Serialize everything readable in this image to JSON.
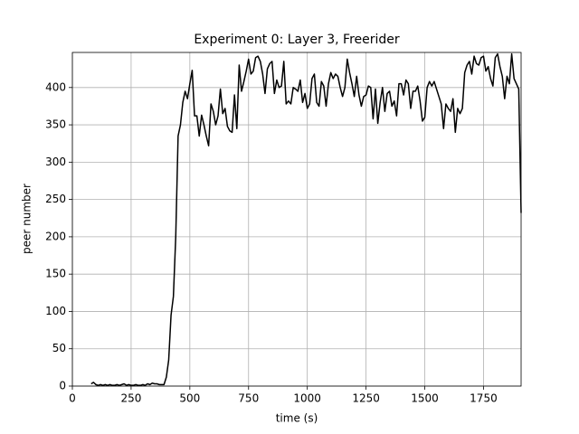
{
  "chart_data": {
    "type": "line",
    "title": "Experiment 0: Layer 3, Freerider",
    "x_label": "time (s)",
    "y_label": "peer number",
    "x": [
      80,
      90,
      100,
      110,
      120,
      130,
      140,
      150,
      160,
      170,
      180,
      190,
      200,
      210,
      220,
      230,
      240,
      250,
      260,
      270,
      280,
      290,
      300,
      310,
      320,
      330,
      340,
      350,
      360,
      370,
      380,
      390,
      400,
      410,
      420,
      430,
      440,
      450,
      460,
      470,
      480,
      490,
      500,
      510,
      520,
      530,
      540,
      550,
      560,
      570,
      580,
      590,
      600,
      610,
      620,
      630,
      640,
      650,
      660,
      670,
      680,
      690,
      700,
      710,
      720,
      730,
      740,
      750,
      760,
      770,
      780,
      790,
      800,
      810,
      820,
      830,
      840,
      850,
      860,
      870,
      880,
      890,
      900,
      910,
      920,
      930,
      940,
      950,
      960,
      970,
      980,
      990,
      1000,
      1010,
      1020,
      1030,
      1040,
      1050,
      1060,
      1070,
      1080,
      1090,
      1100,
      1110,
      1120,
      1130,
      1140,
      1150,
      1160,
      1170,
      1180,
      1190,
      1200,
      1210,
      1220,
      1230,
      1240,
      1250,
      1260,
      1270,
      1280,
      1290,
      1300,
      1310,
      1320,
      1330,
      1340,
      1350,
      1360,
      1370,
      1380,
      1390,
      1400,
      1410,
      1420,
      1430,
      1440,
      1450,
      1460,
      1470,
      1480,
      1490,
      1500,
      1510,
      1520,
      1530,
      1540,
      1550,
      1560,
      1570,
      1580,
      1590,
      1600,
      1610,
      1620,
      1630,
      1640,
      1650,
      1660,
      1670,
      1680,
      1690,
      1700,
      1710,
      1720,
      1730,
      1740,
      1750,
      1760,
      1770,
      1780,
      1790,
      1800,
      1810,
      1820,
      1830,
      1840,
      1850,
      1860,
      1870,
      1880,
      1890,
      1900,
      1910
    ],
    "series": [
      {
        "color": "#000000",
        "values": [
          3,
          5,
          2,
          1,
          2,
          1,
          2,
          1,
          2,
          1,
          1,
          2,
          1,
          2,
          3,
          1,
          2,
          1,
          1,
          2,
          1,
          1,
          2,
          1,
          3,
          2,
          4,
          3,
          3,
          2,
          2,
          2,
          12,
          35,
          95,
          120,
          200,
          335,
          350,
          380,
          395,
          385,
          405,
          423,
          362,
          362,
          335,
          363,
          350,
          335,
          322,
          378,
          368,
          350,
          362,
          398,
          365,
          372,
          348,
          342,
          340,
          390,
          345,
          430,
          395,
          408,
          422,
          438,
          418,
          422,
          440,
          442,
          435,
          418,
          392,
          425,
          432,
          435,
          392,
          410,
          400,
          402,
          435,
          378,
          382,
          378,
          400,
          398,
          395,
          410,
          380,
          392,
          372,
          378,
          412,
          418,
          380,
          375,
          408,
          402,
          375,
          405,
          420,
          412,
          418,
          415,
          400,
          388,
          400,
          438,
          420,
          405,
          388,
          415,
          390,
          375,
          388,
          390,
          402,
          400,
          358,
          398,
          352,
          380,
          400,
          368,
          392,
          395,
          375,
          382,
          362,
          405,
          405,
          390,
          410,
          405,
          372,
          395,
          395,
          402,
          382,
          355,
          360,
          400,
          408,
          402,
          408,
          398,
          388,
          378,
          345,
          378,
          372,
          368,
          385,
          340,
          372,
          365,
          372,
          420,
          430,
          435,
          418,
          442,
          432,
          430,
          440,
          442,
          422,
          428,
          412,
          402,
          440,
          445,
          428,
          415,
          385,
          415,
          405,
          445,
          412,
          405,
          398,
          232
        ]
      }
    ],
    "xlim": [
      0,
      1910
    ],
    "xticks": [
      0,
      250,
      500,
      750,
      1000,
      1250,
      1500,
      1750
    ],
    "ylim": [
      0,
      447
    ],
    "yticks": [
      0,
      50,
      100,
      150,
      200,
      250,
      300,
      350,
      400
    ],
    "grid": true
  }
}
